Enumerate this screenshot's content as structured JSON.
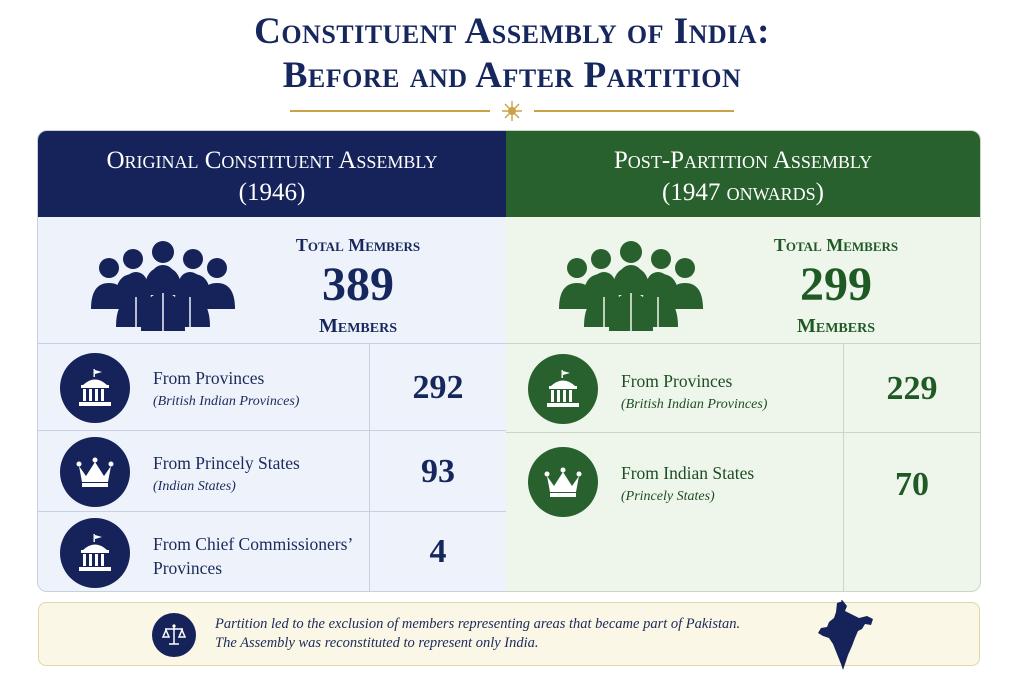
{
  "title": {
    "line1": "Constituent Assembly of India:",
    "line2": "Before and After Partition"
  },
  "left": {
    "heading_line1": "Original Constituent Assembly",
    "heading_line2": "(1946)",
    "total_label": "Total Members",
    "total_value": "389",
    "total_unit": "Members",
    "rows": [
      {
        "title": "From Provinces",
        "subtitle": "(British Indian Provinces)",
        "value": "292",
        "icon": "government-building-icon"
      },
      {
        "title": "From Princely States",
        "subtitle": "(Indian States)",
        "value": "93",
        "icon": "crown-icon"
      },
      {
        "title": "From Chief Commissioners’",
        "subtitle": "Provinces",
        "value": "4",
        "icon": "government-building-icon"
      }
    ],
    "color": "#15235a"
  },
  "right": {
    "heading_line1": "Post-Partition Assembly",
    "heading_line2": "(1947 onwards)",
    "total_label": "Total Members",
    "total_value": "299",
    "total_unit": "Members",
    "rows": [
      {
        "title": "From Provinces",
        "subtitle": "(British Indian Provinces)",
        "value": "229",
        "icon": "government-building-icon"
      },
      {
        "title": "From Indian States",
        "subtitle": "(Princely States)",
        "value": "70",
        "icon": "crown-icon"
      }
    ],
    "color": "#28612d"
  },
  "note": {
    "line1": "Partition led to the exclusion of members representing areas that became part of Pakistan.",
    "line2": "The Assembly was reconstituted to represent only India.",
    "icon": "scales-of-justice-icon"
  },
  "accent_gold": "#c9a24a"
}
